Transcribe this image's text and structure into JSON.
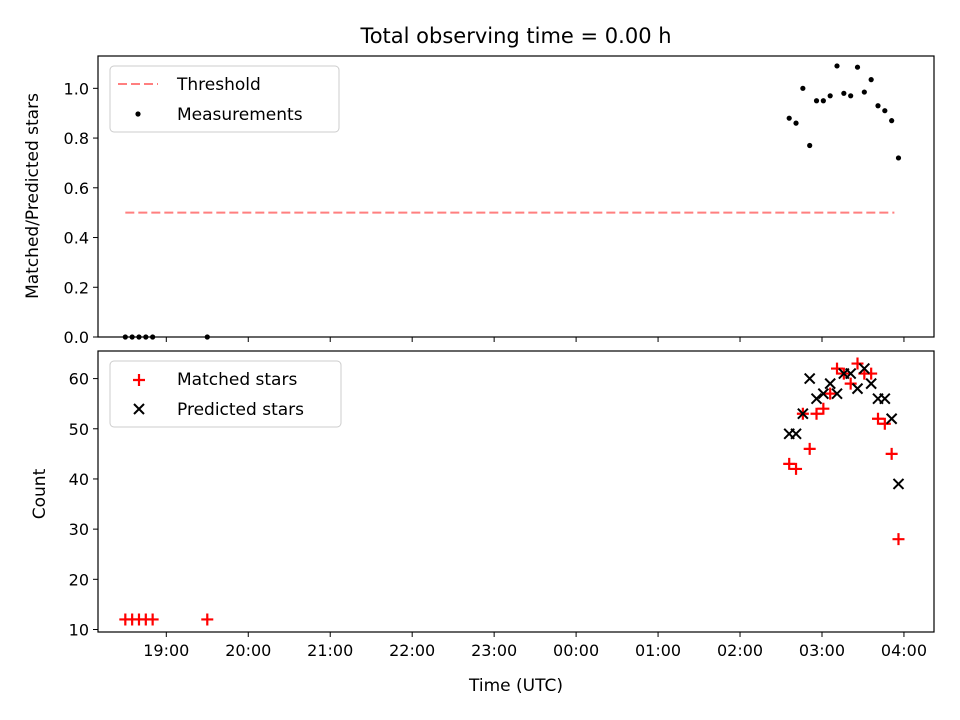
{
  "chart_data": [
    {
      "type": "scatter",
      "title": "Total observing time = 0.00 h",
      "ylabel": "Matched/Predicted stars",
      "xlabel": "",
      "ylim": [
        0,
        1.13
      ],
      "yticks": [
        "0.0",
        "0.2",
        "0.4",
        "0.6",
        "0.8",
        "1.0"
      ],
      "legend": {
        "position": "top-left",
        "entries": [
          {
            "name": "Threshold",
            "style": "dashed-line",
            "color": "#ff7f7f"
          },
          {
            "name": "Measurements",
            "style": "dot",
            "color": "#000000"
          }
        ]
      },
      "threshold": {
        "name": "Threshold",
        "y": 0.5,
        "x_start": "18:30",
        "x_end": "03:53",
        "color": "#ff7f7f"
      },
      "series": [
        {
          "name": "Measurements",
          "color": "#000000",
          "marker": "dot",
          "x": [
            "18:30",
            "18:35",
            "18:40",
            "18:45",
            "18:50",
            "19:30",
            "02:36",
            "02:41",
            "02:46",
            "02:51",
            "02:56",
            "03:01",
            "03:06",
            "03:11",
            "03:16",
            "03:21",
            "03:26",
            "03:31",
            "03:36",
            "03:41",
            "03:46",
            "03:51"
          ],
          "y": [
            0.0,
            0.0,
            0.0,
            0.0,
            0.0,
            0.0,
            0.88,
            0.86,
            1.0,
            0.77,
            0.95,
            0.95,
            0.97,
            1.09,
            0.98,
            0.97,
            1.085,
            0.985,
            1.035,
            0.93,
            0.91,
            0.87
          ]
        },
        {
          "name": "",
          "color": "#000000",
          "marker": "dot",
          "x": [
            "03:56"
          ],
          "y": [
            0.72
          ]
        }
      ]
    },
    {
      "type": "scatter",
      "title": "",
      "ylabel": "Count",
      "xlabel": "Time (UTC)",
      "ylim": [
        9.5,
        65.5
      ],
      "yticks": [
        "10",
        "20",
        "30",
        "40",
        "50",
        "60"
      ],
      "xticks": [
        "19:00",
        "20:00",
        "21:00",
        "22:00",
        "23:00",
        "00:00",
        "01:00",
        "02:00",
        "03:00",
        "04:00"
      ],
      "legend": {
        "position": "top-left",
        "entries": [
          {
            "name": "Matched stars",
            "style": "plus",
            "color": "#ff0000"
          },
          {
            "name": "Predicted stars",
            "style": "x",
            "color": "#000000"
          }
        ]
      },
      "series": [
        {
          "name": "Matched stars",
          "color": "#ff0000",
          "marker": "plus",
          "x": [
            "18:30",
            "18:35",
            "18:40",
            "18:45",
            "18:50",
            "19:30",
            "02:36",
            "02:41",
            "02:46",
            "02:51",
            "02:56",
            "03:01",
            "03:06",
            "03:11",
            "03:16",
            "03:21",
            "03:26",
            "03:31",
            "03:36",
            "03:41",
            "03:46",
            "03:51",
            "03:56"
          ],
          "y": [
            12,
            12,
            12,
            12,
            12,
            12,
            43,
            42,
            53,
            46,
            53,
            54,
            57,
            62,
            61,
            59,
            63,
            61,
            61,
            52,
            51,
            45,
            28
          ]
        },
        {
          "name": "Predicted stars",
          "color": "#000000",
          "marker": "x",
          "x": [
            "02:36",
            "02:41",
            "02:46",
            "02:51",
            "02:56",
            "03:01",
            "03:06",
            "03:11",
            "03:16",
            "03:21",
            "03:26",
            "03:31",
            "03:36",
            "03:41",
            "03:46",
            "03:51",
            "03:56"
          ],
          "y": [
            49,
            49,
            53,
            60,
            56,
            57,
            59,
            57,
            61,
            61,
            58,
            62,
            59,
            56,
            56,
            52,
            39
          ]
        }
      ]
    }
  ]
}
